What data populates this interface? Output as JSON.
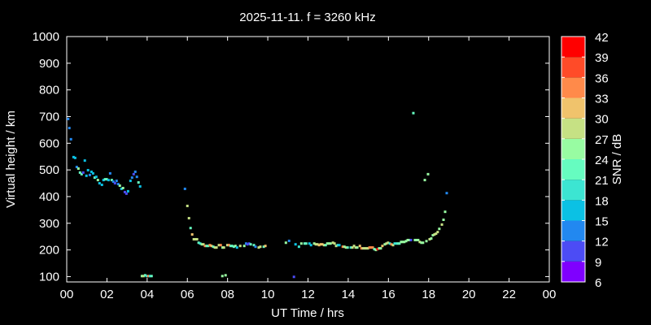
{
  "chart_data": {
    "type": "scatter",
    "title": "2025-11-11. f = 3260 kHz",
    "xlabel": "UT Time / hrs",
    "ylabel": "Virtual height / km",
    "xlim": [
      0,
      24
    ],
    "ylim": [
      80,
      1000
    ],
    "xticks": [
      "00",
      "02",
      "04",
      "06",
      "08",
      "10",
      "12",
      "14",
      "16",
      "18",
      "20",
      "22",
      "00"
    ],
    "yticks": [
      100,
      200,
      300,
      400,
      500,
      600,
      700,
      800,
      900,
      1000
    ],
    "grid": false,
    "colorbar": {
      "label": "SNR / dB",
      "ticks": [
        6,
        9,
        12,
        15,
        18,
        21,
        24,
        27,
        30,
        33,
        36,
        39,
        42
      ],
      "colors": [
        "#7f00ff",
        "#4c4cf5",
        "#2288f0",
        "#0bc1e4",
        "#3ce5d2",
        "#66fcc0",
        "#98fca2",
        "#c6e184",
        "#f0c36c",
        "#ff8a4a",
        "#ff4b28",
        "#ff0000"
      ]
    },
    "point_fields": [
      "time_hrs",
      "height_km",
      "snr_db"
    ],
    "points": [
      [
        0.07,
        691,
        13
      ],
      [
        0.13,
        657,
        13
      ],
      [
        0.21,
        615,
        13
      ],
      [
        0.34,
        548,
        16
      ],
      [
        0.42,
        545,
        16
      ],
      [
        0.5,
        511,
        13
      ],
      [
        0.58,
        505,
        25
      ],
      [
        0.66,
        490,
        22
      ],
      [
        0.74,
        484,
        22
      ],
      [
        0.82,
        490,
        10
      ],
      [
        0.9,
        535,
        16
      ],
      [
        0.98,
        478,
        16
      ],
      [
        1.06,
        499,
        16
      ],
      [
        1.15,
        481,
        13
      ],
      [
        1.23,
        493,
        16
      ],
      [
        1.31,
        487,
        16
      ],
      [
        1.39,
        471,
        22
      ],
      [
        1.47,
        474,
        16
      ],
      [
        1.55,
        462,
        25
      ],
      [
        1.63,
        450,
        16
      ],
      [
        1.75,
        444,
        16
      ],
      [
        1.83,
        462,
        16
      ],
      [
        1.91,
        465,
        22
      ],
      [
        1.99,
        465,
        22
      ],
      [
        2.08,
        462,
        16
      ],
      [
        2.16,
        487,
        13
      ],
      [
        2.24,
        462,
        22
      ],
      [
        2.32,
        456,
        13
      ],
      [
        2.4,
        450,
        10
      ],
      [
        2.48,
        459,
        13
      ],
      [
        2.56,
        447,
        13
      ],
      [
        2.64,
        441,
        25
      ],
      [
        2.72,
        429,
        16
      ],
      [
        2.8,
        432,
        25
      ],
      [
        2.89,
        417,
        10
      ],
      [
        2.97,
        411,
        10
      ],
      [
        3.05,
        420,
        16
      ],
      [
        3.17,
        459,
        16
      ],
      [
        3.25,
        471,
        13
      ],
      [
        3.33,
        484,
        10
      ],
      [
        3.41,
        493,
        13
      ],
      [
        3.49,
        474,
        13
      ],
      [
        3.57,
        453,
        22
      ],
      [
        3.65,
        438,
        16
      ],
      [
        3.74,
        102,
        25
      ],
      [
        3.82,
        102,
        28
      ],
      [
        3.9,
        105,
        22
      ],
      [
        3.98,
        102,
        19
      ],
      [
        4.06,
        102,
        34
      ],
      [
        4.14,
        102,
        19
      ],
      [
        4.22,
        102,
        22
      ],
      [
        5.88,
        429,
        13
      ],
      [
        6.0,
        365,
        28
      ],
      [
        6.08,
        319,
        28
      ],
      [
        6.16,
        282,
        22
      ],
      [
        6.24,
        258,
        31
      ],
      [
        6.32,
        240,
        28
      ],
      [
        6.4,
        240,
        28
      ],
      [
        6.48,
        240,
        28
      ],
      [
        6.56,
        227,
        22
      ],
      [
        6.64,
        224,
        19
      ],
      [
        6.72,
        221,
        25
      ],
      [
        6.8,
        221,
        28
      ],
      [
        6.88,
        215,
        34
      ],
      [
        6.96,
        215,
        22
      ],
      [
        7.04,
        215,
        22
      ],
      [
        7.12,
        218,
        34
      ],
      [
        7.2,
        215,
        31
      ],
      [
        7.29,
        212,
        22
      ],
      [
        7.37,
        209,
        28
      ],
      [
        7.45,
        209,
        28
      ],
      [
        7.57,
        218,
        28
      ],
      [
        7.66,
        218,
        34
      ],
      [
        7.75,
        209,
        25
      ],
      [
        7.82,
        209,
        28
      ],
      [
        7.99,
        218,
        28
      ],
      [
        8.07,
        218,
        34
      ],
      [
        8.15,
        215,
        22
      ],
      [
        8.23,
        215,
        22
      ],
      [
        8.31,
        212,
        22
      ],
      [
        8.39,
        215,
        25
      ],
      [
        8.47,
        209,
        16
      ],
      [
        8.63,
        215,
        28
      ],
      [
        8.83,
        215,
        25
      ],
      [
        8.92,
        224,
        13
      ],
      [
        8.99,
        221,
        10
      ],
      [
        9.07,
        224,
        10
      ],
      [
        9.15,
        221,
        22
      ],
      [
        9.31,
        218,
        22
      ],
      [
        9.39,
        212,
        13
      ],
      [
        9.55,
        209,
        28
      ],
      [
        9.63,
        212,
        28
      ],
      [
        9.8,
        212,
        22
      ],
      [
        9.88,
        215,
        31
      ],
      [
        7.74,
        102,
        25
      ],
      [
        7.9,
        105,
        25
      ],
      [
        10.9,
        227,
        25
      ],
      [
        11.06,
        234,
        13
      ],
      [
        11.3,
        99,
        10
      ],
      [
        11.38,
        221,
        16
      ],
      [
        11.55,
        212,
        19
      ],
      [
        11.67,
        224,
        25
      ],
      [
        11.83,
        224,
        22
      ],
      [
        11.91,
        224,
        22
      ],
      [
        12.07,
        224,
        16
      ],
      [
        12.15,
        218,
        16
      ],
      [
        12.31,
        224,
        25
      ],
      [
        12.39,
        221,
        28
      ],
      [
        12.47,
        221,
        28
      ],
      [
        12.55,
        218,
        31
      ],
      [
        12.63,
        221,
        31
      ],
      [
        12.71,
        221,
        31
      ],
      [
        12.8,
        218,
        28
      ],
      [
        12.88,
        218,
        22
      ],
      [
        12.96,
        224,
        25
      ],
      [
        13.04,
        224,
        25
      ],
      [
        13.12,
        224,
        25
      ],
      [
        13.24,
        227,
        28
      ],
      [
        13.32,
        224,
        28
      ],
      [
        13.4,
        215,
        28
      ],
      [
        13.48,
        218,
        19
      ],
      [
        13.56,
        218,
        16
      ],
      [
        13.73,
        212,
        34
      ],
      [
        13.81,
        212,
        25
      ],
      [
        13.89,
        209,
        28
      ],
      [
        13.97,
        209,
        22
      ],
      [
        14.13,
        209,
        19
      ],
      [
        14.21,
        209,
        28
      ],
      [
        14.29,
        215,
        28
      ],
      [
        14.37,
        209,
        28
      ],
      [
        14.45,
        209,
        25
      ],
      [
        14.58,
        215,
        31
      ],
      [
        14.66,
        206,
        34
      ],
      [
        14.74,
        206,
        28
      ],
      [
        14.82,
        206,
        28
      ],
      [
        14.9,
        206,
        28
      ],
      [
        14.98,
        206,
        28
      ],
      [
        15.06,
        209,
        34
      ],
      [
        15.14,
        209,
        34
      ],
      [
        15.22,
        209,
        34
      ],
      [
        15.3,
        203,
        22
      ],
      [
        15.38,
        200,
        25
      ],
      [
        15.46,
        203,
        40
      ],
      [
        15.54,
        206,
        25
      ],
      [
        15.62,
        206,
        25
      ],
      [
        15.7,
        215,
        31
      ],
      [
        15.82,
        221,
        25
      ],
      [
        15.9,
        224,
        28
      ],
      [
        15.98,
        227,
        28
      ],
      [
        16.07,
        224,
        19
      ],
      [
        16.15,
        221,
        34
      ],
      [
        16.23,
        218,
        28
      ],
      [
        16.31,
        224,
        19
      ],
      [
        16.39,
        224,
        19
      ],
      [
        16.47,
        224,
        22
      ],
      [
        16.55,
        224,
        22
      ],
      [
        16.63,
        230,
        25
      ],
      [
        16.71,
        230,
        25
      ],
      [
        16.79,
        230,
        25
      ],
      [
        16.88,
        233,
        25
      ],
      [
        16.96,
        237,
        25
      ],
      [
        17.04,
        237,
        25
      ],
      [
        17.12,
        237,
        10
      ],
      [
        17.24,
        713,
        22
      ],
      [
        17.32,
        237,
        25
      ],
      [
        17.4,
        237,
        25
      ],
      [
        17.48,
        237,
        25
      ],
      [
        17.56,
        230,
        28
      ],
      [
        17.64,
        227,
        25
      ],
      [
        17.72,
        227,
        25
      ],
      [
        17.81,
        462,
        25
      ],
      [
        17.89,
        233,
        25
      ],
      [
        17.97,
        484,
        25
      ],
      [
        18.05,
        240,
        28
      ],
      [
        18.13,
        243,
        25
      ],
      [
        18.21,
        255,
        25
      ],
      [
        18.29,
        258,
        28
      ],
      [
        18.37,
        261,
        28
      ],
      [
        18.45,
        267,
        28
      ],
      [
        18.53,
        279,
        25
      ],
      [
        18.66,
        295,
        28
      ],
      [
        18.74,
        313,
        25
      ],
      [
        18.82,
        343,
        25
      ],
      [
        18.9,
        413,
        13
      ]
    ]
  }
}
